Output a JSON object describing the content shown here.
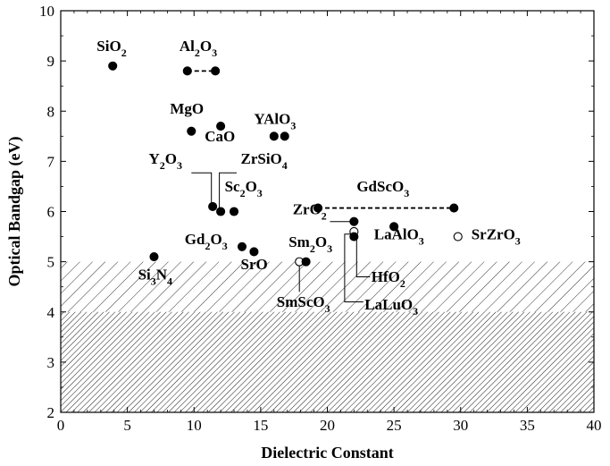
{
  "chart_data": {
    "type": "scatter",
    "xlabel": "Dielectric Constant",
    "ylabel": "Optical Bandgap (eV)",
    "xlim": [
      0,
      40
    ],
    "ylim": [
      2,
      10
    ],
    "xticks": [
      0,
      5,
      10,
      15,
      20,
      25,
      30,
      35,
      40
    ],
    "yticks": [
      2,
      3,
      4,
      5,
      6,
      7,
      8,
      9,
      10
    ],
    "grid": false,
    "shaded_regions": [
      {
        "y_from": 4,
        "y_to": 5,
        "pattern": "sparse-diagonal-hatch"
      },
      {
        "y_from": 2,
        "y_to": 4,
        "pattern": "dense-diagonal-hatch"
      }
    ],
    "points": [
      {
        "x": 3.9,
        "y": 8.9,
        "filled": true
      },
      {
        "x": 9.5,
        "y": 8.8,
        "filled": true
      },
      {
        "x": 11.6,
        "y": 8.8,
        "filled": true
      },
      {
        "x": 12.0,
        "y": 7.7,
        "filled": true
      },
      {
        "x": 9.8,
        "y": 7.6,
        "filled": true
      },
      {
        "x": 16.0,
        "y": 7.5,
        "filled": true
      },
      {
        "x": 16.8,
        "y": 7.5,
        "filled": true
      },
      {
        "x": 11.4,
        "y": 6.1,
        "filled": true
      },
      {
        "x": 12.0,
        "y": 6.0,
        "filled": true
      },
      {
        "x": 13.0,
        "y": 6.0,
        "filled": true
      },
      {
        "x": 19.3,
        "y": 6.07,
        "filled": true
      },
      {
        "x": 29.5,
        "y": 6.07,
        "filled": true
      },
      {
        "x": 22.0,
        "y": 5.8,
        "filled": true
      },
      {
        "x": 25.0,
        "y": 5.7,
        "filled": true
      },
      {
        "x": 22.0,
        "y": 5.6,
        "filled": false
      },
      {
        "x": 22.0,
        "y": 5.5,
        "filled": true
      },
      {
        "x": 29.8,
        "y": 5.5,
        "filled": false
      },
      {
        "x": 13.6,
        "y": 5.3,
        "filled": true
      },
      {
        "x": 14.5,
        "y": 5.2,
        "filled": true
      },
      {
        "x": 7.0,
        "y": 5.1,
        "filled": true
      },
      {
        "x": 17.9,
        "y": 5.0,
        "filled": false
      },
      {
        "x": 18.4,
        "y": 5.0,
        "filled": true
      }
    ],
    "dashed_links": [
      {
        "x1": 9.5,
        "y1": 8.8,
        "x2": 11.6,
        "y2": 8.8
      },
      {
        "x1": 19.3,
        "y1": 6.07,
        "x2": 29.5,
        "y2": 6.07
      }
    ],
    "labels": [
      {
        "parts": [
          "SiO",
          "2"
        ],
        "x": 2.7,
        "y": 9.2
      },
      {
        "parts": [
          "Al",
          "2",
          "O",
          "3"
        ],
        "x": 8.9,
        "y": 9.2
      },
      {
        "parts": [
          "MgO"
        ],
        "x": 8.2,
        "y": 7.95
      },
      {
        "parts": [
          "CaO"
        ],
        "x": 10.8,
        "y": 7.4
      },
      {
        "parts": [
          "YAlO",
          "3"
        ],
        "x": 14.5,
        "y": 7.75
      },
      {
        "parts": [
          "Y",
          "2",
          "O",
          "3"
        ],
        "x": 6.6,
        "y": 6.95
      },
      {
        "parts": [
          "ZrSiO",
          "4"
        ],
        "x": 13.5,
        "y": 6.95
      },
      {
        "parts": [
          "Sc",
          "2",
          "O",
          "3"
        ],
        "x": 12.3,
        "y": 6.4
      },
      {
        "parts": [
          "GdScO",
          "3"
        ],
        "x": 22.2,
        "y": 6.4
      },
      {
        "parts": [
          "ZrO",
          "2"
        ],
        "x": 17.4,
        "y": 5.95
      },
      {
        "parts": [
          "LaAlO",
          "3"
        ],
        "x": 23.5,
        "y": 5.45
      },
      {
        "parts": [
          "SrZrO",
          "3"
        ],
        "x": 30.8,
        "y": 5.45
      },
      {
        "parts": [
          "Gd",
          "2",
          "O",
          "3"
        ],
        "x": 9.3,
        "y": 5.35
      },
      {
        "parts": [
          "SrO"
        ],
        "x": 13.5,
        "y": 4.85
      },
      {
        "parts": [
          "Sm",
          "2",
          "O",
          "3"
        ],
        "x": 17.1,
        "y": 5.3
      },
      {
        "parts": [
          "Si",
          "3",
          "N",
          "4"
        ],
        "x": 5.8,
        "y": 4.65
      },
      {
        "parts": [
          "HfO",
          "2"
        ],
        "x": 23.3,
        "y": 4.6
      },
      {
        "parts": [
          "SmScO",
          "3"
        ],
        "x": 16.2,
        "y": 4.1
      },
      {
        "parts": [
          "LaLuO",
          "3"
        ],
        "x": 22.8,
        "y": 4.05
      }
    ],
    "leader_lines": [
      [
        [
          9.8,
          6.77
        ],
        [
          11.3,
          6.77
        ],
        [
          11.3,
          6.12
        ]
      ],
      [
        [
          13.2,
          6.77
        ],
        [
          11.9,
          6.77
        ],
        [
          11.9,
          6.03
        ]
      ],
      [
        [
          20.2,
          5.8
        ],
        [
          21.8,
          5.8
        ]
      ],
      [
        [
          22.2,
          5.5
        ],
        [
          22.2,
          4.7
        ],
        [
          23.2,
          4.7
        ]
      ],
      [
        [
          21.9,
          5.55
        ],
        [
          21.3,
          5.55
        ],
        [
          21.3,
          4.2
        ],
        [
          22.7,
          4.2
        ]
      ],
      [
        [
          17.9,
          4.93
        ],
        [
          17.9,
          4.4
        ]
      ]
    ]
  }
}
